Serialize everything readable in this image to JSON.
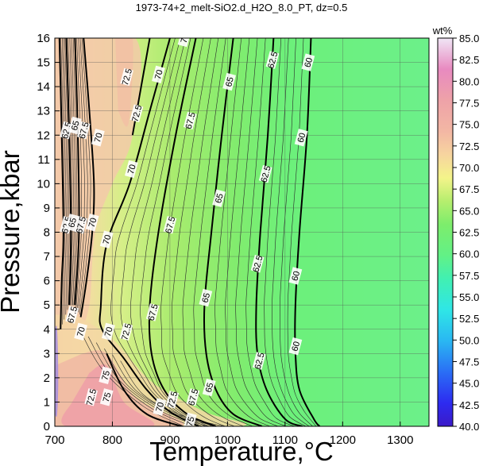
{
  "chart_data": {
    "type": "contour",
    "title": "1973-74+2_melt-SiO2.d_H2O_8.0_PT, dz=0.5",
    "xlabel": "Temperature,°C",
    "ylabel": "Pressure,kbar",
    "xlim": [
      700,
      1350
    ],
    "ylim": [
      0,
      16
    ],
    "x_ticks": [
      "700",
      "800",
      "900",
      "1000",
      "1100",
      "1200",
      "1300"
    ],
    "y_ticks": [
      "0",
      "1",
      "2",
      "3",
      "4",
      "5",
      "6",
      "7",
      "8",
      "9",
      "10",
      "11",
      "12",
      "13",
      "14",
      "15",
      "16"
    ],
    "grid": true,
    "colorbar": {
      "label": "wt%",
      "min": 40.0,
      "max": 85.0,
      "tick_labels": [
        "40.0",
        "42.5",
        "45.0",
        "47.5",
        "50.0",
        "52.5",
        "55.0",
        "57.5",
        "60.0",
        "62.5",
        "65.0",
        "67.5",
        "70.0",
        "72.5",
        "75.0",
        "77.5",
        "80.0",
        "82.5",
        "85.0"
      ]
    },
    "contour_interval": 0.5,
    "major_contours": [
      {
        "level": "60",
        "points": [
          [
            1145,
            16
          ],
          [
            1138,
            12
          ],
          [
            1125,
            8
          ],
          [
            1118,
            5
          ],
          [
            1118,
            3
          ],
          [
            1125,
            1.5
          ],
          [
            1150,
            0.3
          ],
          [
            1160,
            0
          ]
        ],
        "labels": [
          [
            1140,
            15
          ],
          [
            1128,
            11.9
          ],
          [
            1118,
            6.2
          ],
          [
            1118,
            3.3
          ]
        ]
      },
      {
        "level": "62.5",
        "points": [
          [
            1080,
            16
          ],
          [
            1070,
            12
          ],
          [
            1057,
            8
          ],
          [
            1050,
            5
          ],
          [
            1052,
            3
          ],
          [
            1068,
            1.5
          ],
          [
            1100,
            0.3
          ],
          [
            1130,
            0
          ]
        ],
        "labels": [
          [
            1078,
            15.1
          ],
          [
            1066,
            10.4
          ],
          [
            1052,
            6.7
          ],
          [
            1055,
            2.7
          ]
        ]
      },
      {
        "level": "65",
        "points": [
          [
            1010,
            16
          ],
          [
            990,
            12
          ],
          [
            972,
            8
          ],
          [
            960,
            5
          ],
          [
            963,
            3
          ],
          [
            980,
            1.5
          ],
          [
            1010,
            0.5
          ],
          [
            1060,
            0
          ]
        ],
        "labels": [
          [
            1003,
            14.2
          ],
          [
            985,
            9.4
          ],
          [
            962,
            5.3
          ],
          [
            968,
            1.6
          ]
        ]
      },
      {
        "level": "67.5",
        "points": [
          [
            945,
            16
          ],
          [
            910,
            12
          ],
          [
            880,
            8
          ],
          [
            865,
            5
          ],
          [
            868,
            3
          ],
          [
            890,
            1.5
          ],
          [
            930,
            0.5
          ],
          [
            980,
            0
          ]
        ],
        "labels": [
          [
            935,
            12.6
          ],
          [
            900,
            8.3
          ],
          [
            870,
            4.7
          ],
          [
            940,
            1.2
          ]
        ]
      },
      {
        "level": "70",
        "points": [
          [
            900,
            16
          ],
          [
            865,
            13
          ],
          [
            830,
            10
          ],
          [
            790,
            7.5
          ],
          [
            780,
            5
          ],
          [
            782,
            4
          ],
          [
            820,
            2.8
          ],
          [
            860,
            1.5
          ],
          [
            900,
            0.6
          ],
          [
            950,
            0
          ]
        ],
        "labels": [
          [
            925,
            16
          ],
          [
            880,
            14.5
          ],
          [
            833,
            10.6
          ],
          [
            790,
            7.7
          ],
          [
            793,
            3.9
          ],
          [
            882,
            0.8
          ]
        ]
      },
      {
        "level": "72.5",
        "points": [
          [
            835,
            12
          ],
          [
            850,
            14
          ],
          [
            865,
            16
          ]
        ],
        "labels": [
          [
            825,
            14.4
          ],
          [
            842,
            12.9
          ],
          [
            824,
            3.9
          ],
          [
            904,
            1.1
          ],
          [
            763,
            1.2
          ]
        ]
      },
      {
        "level": "75",
        "points": [
          [
            790,
            3
          ],
          [
            820,
            1.5
          ],
          [
            860,
            0.5
          ],
          [
            920,
            0
          ]
        ],
        "labels": [
          [
            788,
            2.1
          ],
          [
            790,
            1.2
          ],
          [
            935,
            0.2
          ]
        ]
      },
      {
        "level": "62.5",
        "points": [
          [
            708,
            16
          ],
          [
            712,
            12
          ],
          [
            715,
            8
          ],
          [
            712,
            6
          ],
          [
            710,
            4
          ]
        ],
        "labels": [
          [
            720,
            12.2
          ],
          [
            720,
            8.3
          ]
        ]
      },
      {
        "level": "65",
        "points": [
          [
            720,
            16
          ],
          [
            725,
            12
          ],
          [
            728,
            8
          ],
          [
            725,
            5
          ]
        ],
        "labels": [
          [
            735,
            12.4
          ],
          [
            730,
            8.4
          ]
        ]
      },
      {
        "level": "67.5",
        "points": [
          [
            735,
            16
          ],
          [
            740,
            12
          ],
          [
            742,
            8
          ],
          [
            735,
            5
          ]
        ],
        "labels": [
          [
            750,
            12.2
          ],
          [
            745,
            8.3
          ],
          [
            730,
            4.6
          ]
        ]
      },
      {
        "level": "70",
        "points": [
          [
            750,
            16
          ],
          [
            760,
            13
          ],
          [
            768,
            10
          ],
          [
            765,
            8
          ],
          [
            755,
            6
          ],
          [
            745,
            4.5
          ]
        ],
        "labels": [
          [
            775,
            11.9
          ],
          [
            765,
            8.4
          ],
          [
            745,
            3.9
          ]
        ]
      }
    ]
  }
}
